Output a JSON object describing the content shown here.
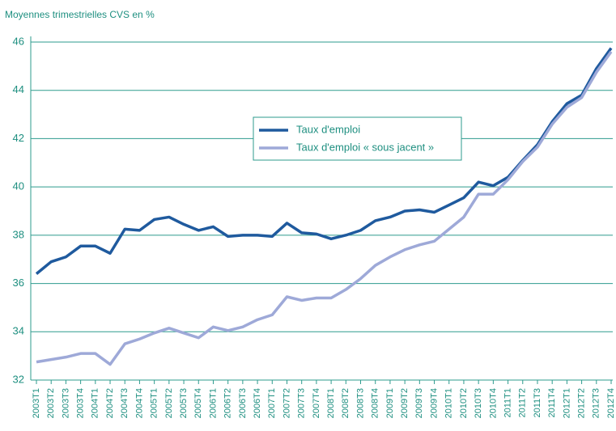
{
  "chart_data": {
    "type": "line",
    "title": "Moyennes trimestrielles CVS en %",
    "categories": [
      "2003T1",
      "2003T2",
      "2003T3",
      "2003T4",
      "2004T1",
      "2004T2",
      "2004T3",
      "2004T4",
      "2005T1",
      "2005T2",
      "2005T3",
      "2005T4",
      "2006T1",
      "2006T2",
      "2006T3",
      "2006T4",
      "2007T1",
      "2007T2",
      "2007T3",
      "2007T4",
      "2008T1",
      "2008T2",
      "2008T3",
      "2008T4",
      "2009T1",
      "2009T2",
      "2009T3",
      "2009T4",
      "2010T1",
      "2010T2",
      "2010T3",
      "2010T4",
      "2011T1",
      "2011T2",
      "2011T3",
      "2011T4",
      "2012T1",
      "2012T2",
      "2012T3",
      "2012T4"
    ],
    "series": [
      {
        "name": "Taux d'emploi",
        "color": "#1f5a9e",
        "values": [
          36.4,
          36.9,
          37.1,
          37.55,
          37.55,
          37.25,
          38.25,
          38.2,
          38.65,
          38.75,
          38.45,
          38.2,
          38.35,
          37.95,
          38.0,
          38.0,
          37.95,
          38.5,
          38.1,
          38.05,
          37.85,
          38.0,
          38.2,
          38.6,
          38.75,
          39.0,
          39.05,
          38.95,
          39.25,
          39.55,
          40.2,
          40.05,
          40.4,
          41.1,
          41.75,
          42.7,
          43.45,
          43.8,
          44.9,
          45.75
        ]
      },
      {
        "name": "Taux d'emploi « sous jacent »",
        "color": "#9ea9d8",
        "values": [
          32.75,
          32.85,
          32.95,
          33.1,
          33.1,
          32.65,
          33.5,
          33.7,
          33.95,
          34.15,
          33.95,
          33.75,
          34.2,
          34.05,
          34.2,
          34.5,
          34.7,
          35.45,
          35.3,
          35.4,
          35.4,
          35.75,
          36.2,
          36.75,
          37.1,
          37.4,
          37.6,
          37.75,
          38.25,
          38.75,
          39.7,
          39.7,
          40.3,
          41.05,
          41.65,
          42.6,
          43.3,
          43.7,
          44.75,
          45.6
        ]
      }
    ],
    "ylim": [
      32,
      46
    ],
    "yticks": [
      32,
      34,
      36,
      38,
      40,
      42,
      44,
      46
    ],
    "grid": true,
    "grid_color": "#2e9b8e",
    "legend_position": "upper center"
  }
}
